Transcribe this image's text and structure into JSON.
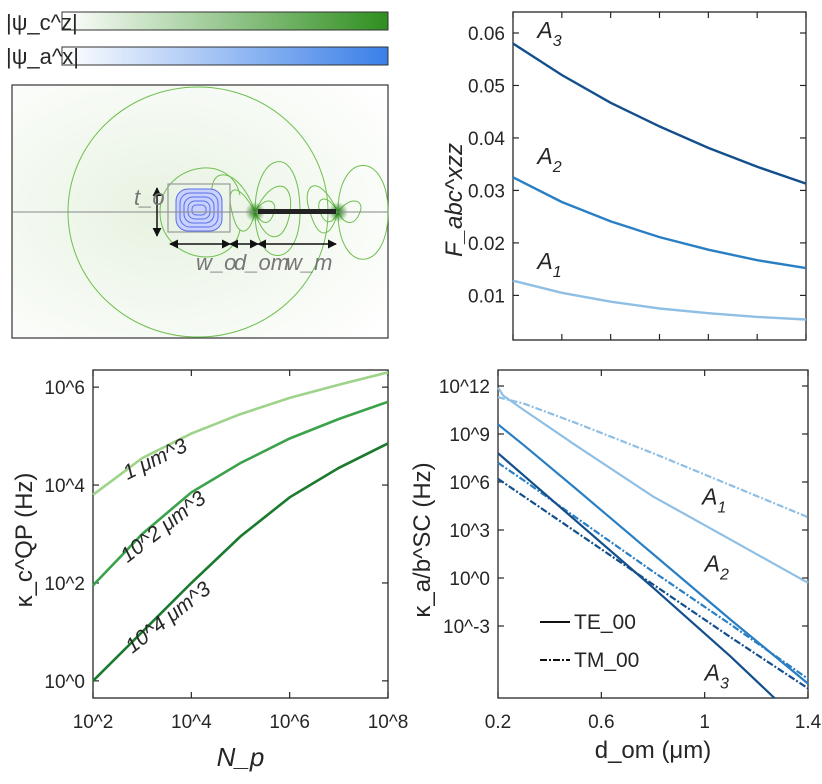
{
  "colors": {
    "green_dark": "#1a7a2e",
    "green_mid": "#3aa24a",
    "green_light": "#9ed38a",
    "blue_dark": "#124f8c",
    "blue_mid": "#2a7fc4",
    "blue_light": "#8fbfe4",
    "field_green": "#2f8f1f",
    "field_blue": "#3a7fe8"
  },
  "panel_a": {
    "colorbar_top_label": "|ψ_c^z|",
    "colorbar_bottom_label": "|ψ_a^x|",
    "dim_t": "t_o",
    "dim_w": "w_o",
    "dim_d": "d_om",
    "dim_wm": "w_m"
  },
  "chart_data": [
    {
      "type": "line",
      "id": "F_abc",
      "ylabel": "F_abc^xzz",
      "xlim": [
        0.2,
        1.4
      ],
      "ylim": [
        0.0015,
        0.064
      ],
      "yticks": [
        "0.01",
        "0.02",
        "0.03",
        "0.04",
        "0.05",
        "0.06"
      ],
      "series": [
        {
          "name": "A_3",
          "x": [
            0.2,
            0.4,
            0.6,
            0.8,
            1.0,
            1.2,
            1.4
          ],
          "y": [
            0.058,
            0.052,
            0.0467,
            0.0422,
            0.0381,
            0.0345,
            0.0313
          ]
        },
        {
          "name": "A_2",
          "x": [
            0.2,
            0.4,
            0.6,
            0.8,
            1.0,
            1.2,
            1.4
          ],
          "y": [
            0.0325,
            0.0278,
            0.0241,
            0.0211,
            0.0187,
            0.0167,
            0.0152
          ]
        },
        {
          "name": "A_1",
          "x": [
            0.2,
            0.4,
            0.6,
            0.8,
            1.0,
            1.2,
            1.4
          ],
          "y": [
            0.0128,
            0.0105,
            0.0088,
            0.0075,
            0.0066,
            0.0059,
            0.0054
          ]
        }
      ]
    },
    {
      "type": "line",
      "id": "kappa_QP",
      "xlabel": "N_p",
      "ylabel": "κ_c^QP (Hz)",
      "xscale": "log",
      "yscale": "log",
      "xlim_log10": [
        2,
        8
      ],
      "ylim_log10": [
        -0.35,
        6.35
      ],
      "xticks": [
        "10^2",
        "10^4",
        "10^6",
        "10^8"
      ],
      "yticks": [
        "10^0",
        "10^2",
        "10^4",
        "10^6"
      ],
      "series": [
        {
          "name": "1 μm^3",
          "log10x": [
            2,
            3,
            4,
            5,
            6,
            7,
            8
          ],
          "log10y": [
            3.8,
            4.55,
            5.05,
            5.45,
            5.78,
            6.05,
            6.3
          ]
        },
        {
          "name": "10^2 μm^3",
          "log10x": [
            2,
            3,
            4,
            5,
            6,
            7,
            8
          ],
          "log10y": [
            1.95,
            3.0,
            3.85,
            4.45,
            4.95,
            5.35,
            5.7
          ]
        },
        {
          "name": "10^4 μm^3",
          "log10x": [
            2,
            3,
            4,
            5,
            6,
            7,
            8
          ],
          "log10y": [
            0.0,
            1.0,
            2.0,
            2.95,
            3.75,
            4.35,
            4.85
          ]
        }
      ]
    },
    {
      "type": "line",
      "id": "kappa_SC",
      "xlabel": "d_om (μm)",
      "ylabel": "κ_a/b^SC (Hz)",
      "yscale": "log",
      "xlim": [
        0.2,
        1.4
      ],
      "ylim_log10": [
        -7.5,
        13.0
      ],
      "xticks": [
        "0.2",
        "0.6",
        "1",
        "1.4"
      ],
      "yticks": [
        "10^12",
        "10^9",
        "10^6",
        "10^3",
        "10^0",
        "10^-3"
      ],
      "legend": [
        "TE_00",
        "TM_00"
      ],
      "series": [
        {
          "name": "A_1 TE_00",
          "x": [
            0.2,
            0.22,
            0.3,
            0.5,
            0.8,
            1.1,
            1.4
          ],
          "log10y": [
            11.9,
            11.4,
            10.5,
            8.3,
            5.1,
            2.4,
            -0.3
          ]
        },
        {
          "name": "A_1 TM_00",
          "x": [
            0.2,
            0.3,
            0.5,
            0.8,
            1.1,
            1.4
          ],
          "log10y": [
            11.3,
            10.9,
            9.7,
            7.8,
            5.8,
            3.8
          ]
        },
        {
          "name": "A_2 TE_00",
          "x": [
            0.2,
            0.3,
            0.5,
            0.8,
            1.1,
            1.4
          ],
          "log10y": [
            9.6,
            8.3,
            5.6,
            1.5,
            -2.6,
            -6.6
          ]
        },
        {
          "name": "A_2 TM_00",
          "x": [
            0.2,
            0.3,
            0.5,
            0.8,
            1.1,
            1.4
          ],
          "log10y": [
            7.2,
            6.1,
            3.8,
            0.4,
            -2.9,
            -6.3
          ]
        },
        {
          "name": "A_3 TE_00",
          "x": [
            0.2,
            0.3,
            0.5,
            0.8,
            1.1,
            1.27
          ],
          "log10y": [
            7.8,
            6.4,
            3.6,
            -0.6,
            -4.9,
            -7.5
          ]
        },
        {
          "name": "A_3 TM_00",
          "x": [
            0.2,
            0.3,
            0.5,
            0.8,
            1.1,
            1.4
          ],
          "log10y": [
            6.2,
            5.1,
            2.9,
            -0.4,
            -3.7,
            -6.9
          ]
        }
      ]
    }
  ]
}
